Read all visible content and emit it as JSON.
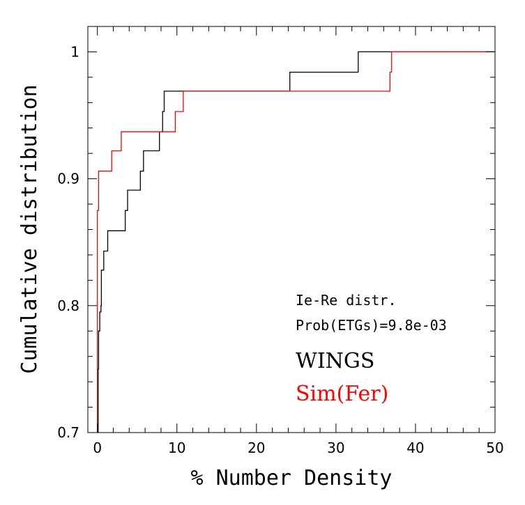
{
  "chart_data": {
    "type": "line",
    "step": true,
    "title": "",
    "xlabel": "% Number Density",
    "ylabel": "Cumulative distribution",
    "xlim": [
      -1.2,
      50
    ],
    "ylim": [
      0.7,
      1.02
    ],
    "x_ticks": [
      0,
      10,
      20,
      30,
      40,
      50
    ],
    "x_tick_labels": [
      "0",
      "10",
      "20",
      "30",
      "40",
      "50"
    ],
    "y_ticks": [
      0.7,
      0.8,
      0.9,
      1
    ],
    "y_tick_labels": [
      "0.7",
      "0.8",
      "0.9",
      "1"
    ],
    "x_minor_step": 2,
    "y_minor_step": 0.02,
    "annotations": [
      "Ie-Re distr.",
      "Prob(ETGs)=9.8e-03"
    ],
    "legend": [
      {
        "label": "WINGS",
        "color": "#000000"
      },
      {
        "label": "Sim(Fer)",
        "color": "#ff0000"
      }
    ],
    "series": [
      {
        "name": "WINGS",
        "color": "#000000",
        "points": [
          [
            0.1,
            0.7
          ],
          [
            0.1,
            0.75
          ],
          [
            0.15,
            0.75
          ],
          [
            0.15,
            0.78
          ],
          [
            0.3,
            0.78
          ],
          [
            0.3,
            0.795
          ],
          [
            0.45,
            0.795
          ],
          [
            0.45,
            0.8
          ],
          [
            0.5,
            0.8
          ],
          [
            0.5,
            0.828
          ],
          [
            0.8,
            0.828
          ],
          [
            0.8,
            0.843
          ],
          [
            1.3,
            0.843
          ],
          [
            1.3,
            0.859
          ],
          [
            3.5,
            0.859
          ],
          [
            3.5,
            0.875
          ],
          [
            3.8,
            0.875
          ],
          [
            3.8,
            0.891
          ],
          [
            5.4,
            0.891
          ],
          [
            5.4,
            0.906
          ],
          [
            5.8,
            0.906
          ],
          [
            5.8,
            0.922
          ],
          [
            7.8,
            0.922
          ],
          [
            7.8,
            0.937
          ],
          [
            8.2,
            0.937
          ],
          [
            8.2,
            0.953
          ],
          [
            8.4,
            0.953
          ],
          [
            8.4,
            0.969
          ],
          [
            24.2,
            0.969
          ],
          [
            24.2,
            0.984
          ],
          [
            32.8,
            0.984
          ],
          [
            32.8,
            1.0
          ],
          [
            50,
            1.0
          ]
        ]
      },
      {
        "name": "Sim(Fer)",
        "color": "#ff0000",
        "points": [
          [
            0.0,
            0.7
          ],
          [
            0.0,
            0.875
          ],
          [
            0.15,
            0.875
          ],
          [
            0.15,
            0.906
          ],
          [
            1.8,
            0.906
          ],
          [
            1.8,
            0.922
          ],
          [
            3.0,
            0.922
          ],
          [
            3.0,
            0.937
          ],
          [
            9.8,
            0.937
          ],
          [
            9.8,
            0.953
          ],
          [
            10.8,
            0.953
          ],
          [
            10.8,
            0.969
          ],
          [
            36.8,
            0.969
          ],
          [
            36.8,
            0.984
          ],
          [
            37.0,
            0.984
          ],
          [
            37.0,
            1.0
          ],
          [
            50,
            1.0
          ]
        ]
      }
    ]
  }
}
